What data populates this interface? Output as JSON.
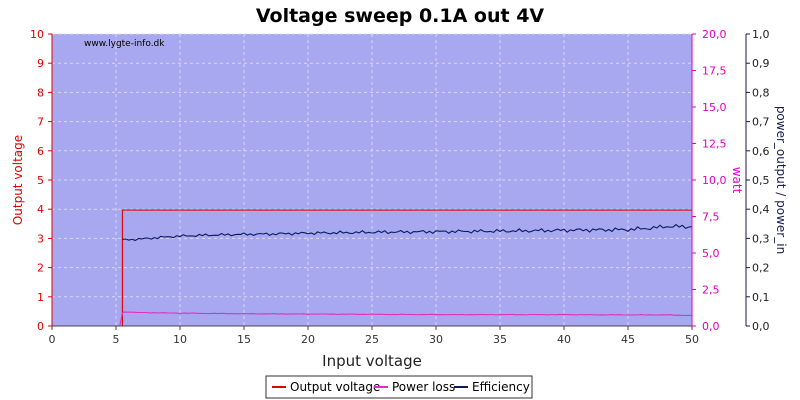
{
  "chart_data": {
    "type": "line",
    "title": "Voltage sweep 0.1A out 4V",
    "watermark": "www.lygte-info.dk",
    "xlabel": "Input voltage",
    "y_left_label": "Output voltage",
    "y_right1_label": "watt",
    "y_right2_label": "power_output / power_in",
    "xlim": [
      0,
      50
    ],
    "ylim_left": [
      0,
      10
    ],
    "ylim_right1": [
      0,
      20
    ],
    "ylim_right2": [
      0,
      1
    ],
    "x_ticks": [
      "0",
      "5",
      "10",
      "15",
      "20",
      "25",
      "30",
      "35",
      "40",
      "45",
      "50"
    ],
    "y_left_ticks": [
      "0",
      "1",
      "2",
      "3",
      "4",
      "5",
      "6",
      "7",
      "8",
      "9",
      "10"
    ],
    "y_right1_ticks": [
      "0,0",
      "2,5",
      "5,0",
      "7,5",
      "10,0",
      "12,5",
      "15,0",
      "17,5",
      "20,0"
    ],
    "y_right2_ticks": [
      "0,0",
      "0,1",
      "0,2",
      "0,3",
      "0,4",
      "0,5",
      "0,6",
      "0,7",
      "0,8",
      "0,9",
      "1,0"
    ],
    "grid": true,
    "legend_position": "bottom",
    "colors": {
      "plot_bg": "#a8a8f0",
      "grid": "#d8d8f8",
      "output_voltage": "#e00000",
      "power_loss": "#e030c0",
      "efficiency": "#0a1a60",
      "left_axis": "#e00000",
      "right1_axis": "#e000c0",
      "right2_axis": "#1a1a50"
    },
    "series": [
      {
        "name": "Output voltage",
        "axis": "left",
        "x": [
          5.0,
          5.3,
          5.5,
          5.5,
          10,
          20,
          30,
          40,
          50
        ],
        "y": [
          0,
          0,
          0,
          3.97,
          3.97,
          3.97,
          3.97,
          3.97,
          3.97
        ]
      },
      {
        "name": "Power loss",
        "axis": "right1",
        "x": [
          5.0,
          5.3,
          5.5,
          5.6,
          7,
          10,
          15,
          20,
          25,
          30,
          35,
          40,
          45,
          48,
          50
        ],
        "y": [
          0,
          0,
          0.9,
          0.95,
          0.92,
          0.88,
          0.84,
          0.82,
          0.8,
          0.78,
          0.78,
          0.78,
          0.76,
          0.76,
          0.72
        ]
      },
      {
        "name": "Efficiency",
        "axis": "right2",
        "x": [
          5.5,
          6,
          7,
          8,
          9,
          10,
          12,
          15,
          17,
          20,
          22,
          25,
          27,
          30,
          32,
          35,
          37,
          40,
          42,
          45,
          47,
          48,
          50
        ],
        "y": [
          0.295,
          0.296,
          0.298,
          0.302,
          0.305,
          0.308,
          0.311,
          0.314,
          0.315,
          0.318,
          0.319,
          0.321,
          0.322,
          0.323,
          0.324,
          0.325,
          0.326,
          0.328,
          0.329,
          0.33,
          0.336,
          0.341,
          0.34
        ]
      }
    ]
  }
}
